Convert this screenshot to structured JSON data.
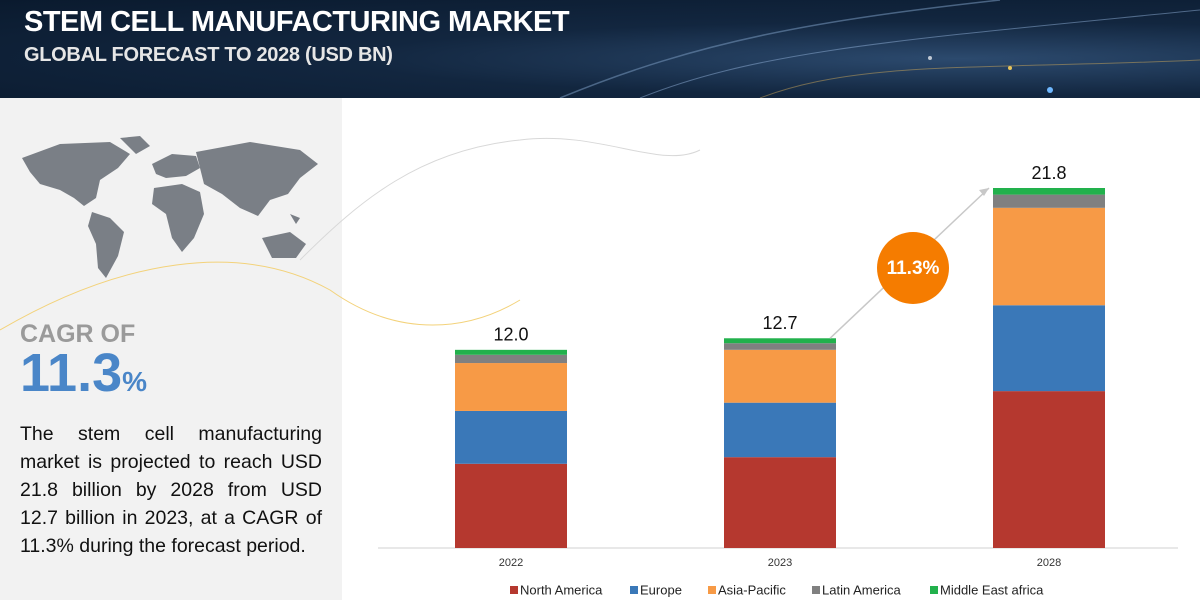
{
  "header": {
    "title": "STEM CELL MANUFACTURING MARKET",
    "subtitle": "GLOBAL FORECAST TO 2028 (USD BN)"
  },
  "summary": {
    "cagr_label": "CAGR OF",
    "cagr_value": 11.3,
    "cagr_unit": "%",
    "description": "The stem cell manufacturing market is projected to reach USD 21.8 billion by 2028 from USD 12.7 billion in 2023, at a CAGR of 11.3% during the forecast period."
  },
  "chart_data": {
    "type": "stacked-bar",
    "categories": [
      "2022",
      "2023",
      "2028"
    ],
    "series": [
      {
        "name": "North America",
        "color": "#b5382f",
        "values": [
          5.1,
          5.5,
          9.5
        ]
      },
      {
        "name": "Europe",
        "color": "#3a78b8",
        "values": [
          3.2,
          3.3,
          5.2
        ]
      },
      {
        "name": "Asia-Pacific",
        "color": "#f79a46",
        "values": [
          2.9,
          3.2,
          5.9
        ]
      },
      {
        "name": "Latin America",
        "color": "#808080",
        "values": [
          0.5,
          0.4,
          0.8
        ]
      },
      {
        "name": "Middle East africa",
        "color": "#22b14c",
        "values": [
          0.3,
          0.3,
          0.4
        ]
      }
    ],
    "totals": [
      12.0,
      12.7,
      21.8
    ],
    "total_labels": [
      "12.0",
      "12.7",
      "21.8"
    ],
    "cagr_badge": "11.3%",
    "legend": "bottom"
  }
}
